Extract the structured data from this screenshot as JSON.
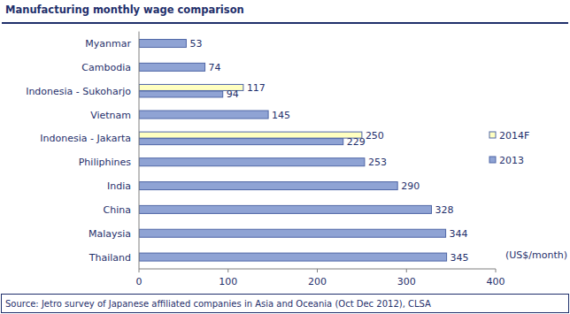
{
  "chart_data": {
    "type": "bar",
    "orientation": "horizontal",
    "title": "Manufacturing monthly wage comparison",
    "categories": [
      "Myanmar",
      "Cambodia",
      "Indonesia - Sukoharjo",
      "Vietnam",
      "Indonesia - Jakarta",
      "Philiphines",
      "India",
      "China",
      "Malaysia",
      "Thailand"
    ],
    "series": [
      {
        "name": "2014F",
        "color": "#ffffc0",
        "values": [
          null,
          null,
          117,
          null,
          250,
          null,
          null,
          null,
          null,
          null
        ]
      },
      {
        "name": "2013",
        "color": "#8fa3d4",
        "values": [
          53,
          74,
          94,
          145,
          229,
          253,
          290,
          328,
          344,
          345
        ]
      }
    ],
    "xlim": [
      0,
      400
    ],
    "xticks": [
      0,
      100,
      200,
      300,
      400
    ],
    "xlabel": "(US$/month)",
    "data_labels": true,
    "legend": "right",
    "grid": false,
    "source": "Source: Jetro survey of Japanese affiliated companies in Asia and Oceania (Oct Dec 2012), CLSA"
  }
}
